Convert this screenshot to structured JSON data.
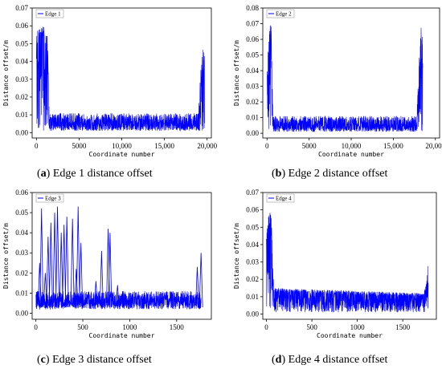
{
  "chart_data": [
    {
      "type": "line",
      "id": "a",
      "caption_letter": "a",
      "caption_text": "Edge 1 distance offset",
      "xlabel": "Coordinate number",
      "ylabel": "Distance offset/m",
      "xlim": [
        -500,
        20500
      ],
      "ylim": [
        -0.003,
        0.07
      ],
      "xticks": [
        0,
        5000,
        10000,
        15000,
        20000
      ],
      "xtick_labels": [
        "0",
        "5000",
        "10,000",
        "15,000",
        "20,000"
      ],
      "yticks": [
        0.0,
        0.01,
        0.02,
        0.03,
        0.04,
        0.05,
        0.06,
        0.07
      ],
      "ytick_labels": [
        "0.00",
        "0.01",
        "0.02",
        "0.03",
        "0.04",
        "0.05",
        "0.06",
        "0.07"
      ],
      "legend_position": "top-left",
      "color": "#0000ff",
      "series": [
        {
          "name": "Edge 1",
          "n": 19700,
          "baseline_min": 0.001,
          "baseline_max": 0.011,
          "envelope": [
            [
              0,
              0.055
            ],
            [
              200,
              0.058
            ],
            [
              500,
              0.06
            ],
            [
              900,
              0.06
            ],
            [
              1300,
              0.055
            ],
            [
              1500,
              0.012
            ],
            [
              19000,
              0.012
            ],
            [
              19300,
              0.04
            ],
            [
              19500,
              0.049
            ],
            [
              19700,
              0.045
            ]
          ]
        }
      ]
    },
    {
      "type": "line",
      "id": "b",
      "caption_letter": "b",
      "caption_text": "Edge 2 distance offset",
      "xlabel": "Coordinate number",
      "ylabel": "Distance offset/m",
      "xlim": [
        -500,
        20500
      ],
      "ylim": [
        -0.003,
        0.08
      ],
      "xticks": [
        0,
        5000,
        10000,
        15000,
        20000
      ],
      "xtick_labels": [
        "0",
        "5000",
        "10,000",
        "15,000",
        "20,000"
      ],
      "yticks": [
        0.0,
        0.01,
        0.02,
        0.03,
        0.04,
        0.05,
        0.06,
        0.07,
        0.08
      ],
      "ytick_labels": [
        "0.00",
        "0.01",
        "0.02",
        "0.03",
        "0.04",
        "0.05",
        "0.06",
        "0.07",
        "0.08"
      ],
      "legend_position": "top-left",
      "color": "#0000ff",
      "series": [
        {
          "name": "Edge 2",
          "n": 18500,
          "baseline_min": 0.001,
          "baseline_max": 0.011,
          "envelope": [
            [
              0,
              0.04
            ],
            [
              300,
              0.07
            ],
            [
              500,
              0.068
            ],
            [
              700,
              0.012
            ],
            [
              17800,
              0.012
            ],
            [
              18100,
              0.05
            ],
            [
              18300,
              0.07
            ],
            [
              18500,
              0.06
            ]
          ]
        }
      ]
    },
    {
      "type": "line",
      "id": "c",
      "caption_letter": "c",
      "caption_text": "Edge 3 distance offset",
      "xlabel": "Coordinate number",
      "ylabel": "Distance offset/m",
      "xlim": [
        -40,
        1870
      ],
      "ylim": [
        -0.003,
        0.06
      ],
      "xticks": [
        0,
        500,
        1000,
        1500
      ],
      "xtick_labels": [
        "0",
        "500",
        "1000",
        "1500"
      ],
      "yticks": [
        0.0,
        0.01,
        0.02,
        0.03,
        0.04,
        0.05,
        0.06
      ],
      "ytick_labels": [
        "0.00",
        "0.01",
        "0.02",
        "0.03",
        "0.04",
        "0.05",
        "0.06"
      ],
      "legend_position": "top-left",
      "color": "#0000ff",
      "series": [
        {
          "name": "Edge 3",
          "n": 1760,
          "baseline_min": 0.002,
          "baseline_max": 0.011,
          "spikes": [
            [
              40,
              0.025
            ],
            [
              60,
              0.052
            ],
            [
              100,
              0.02
            ],
            [
              130,
              0.038
            ],
            [
              160,
              0.045
            ],
            [
              200,
              0.05
            ],
            [
              230,
              0.053
            ],
            [
              270,
              0.04
            ],
            [
              300,
              0.044
            ],
            [
              330,
              0.048
            ],
            [
              390,
              0.047
            ],
            [
              430,
              0.022
            ],
            [
              450,
              0.053
            ],
            [
              480,
              0.035
            ],
            [
              640,
              0.016
            ],
            [
              700,
              0.031
            ],
            [
              770,
              0.042
            ],
            [
              790,
              0.04
            ],
            [
              870,
              0.014
            ],
            [
              1720,
              0.023
            ],
            [
              1760,
              0.03
            ]
          ]
        }
      ]
    },
    {
      "type": "line",
      "id": "d",
      "caption_letter": "d",
      "caption_text": "Edge 4 distance offset",
      "xlabel": "Coordinate number",
      "ylabel": "Distance offset/m",
      "xlim": [
        -40,
        1870
      ],
      "ylim": [
        -0.003,
        0.07
      ],
      "xticks": [
        0,
        500,
        1000,
        1500
      ],
      "xtick_labels": [
        "0",
        "500",
        "1000",
        "1500"
      ],
      "yticks": [
        0.0,
        0.01,
        0.02,
        0.03,
        0.04,
        0.05,
        0.06,
        0.07
      ],
      "ytick_labels": [
        "0.00",
        "0.01",
        "0.02",
        "0.03",
        "0.04",
        "0.05",
        "0.06",
        "0.07"
      ],
      "legend_position": "top-left",
      "color": "#0000ff",
      "series": [
        {
          "name": "Edge 4",
          "n": 1780,
          "baseline_min": 0.001,
          "baseline_max": 0.01,
          "envelope": [
            [
              0,
              0.045
            ],
            [
              20,
              0.055
            ],
            [
              40,
              0.062
            ],
            [
              60,
              0.05
            ],
            [
              80,
              0.015
            ],
            [
              1730,
              0.012
            ],
            [
              1760,
              0.018
            ],
            [
              1780,
              0.032
            ]
          ]
        }
      ]
    }
  ]
}
